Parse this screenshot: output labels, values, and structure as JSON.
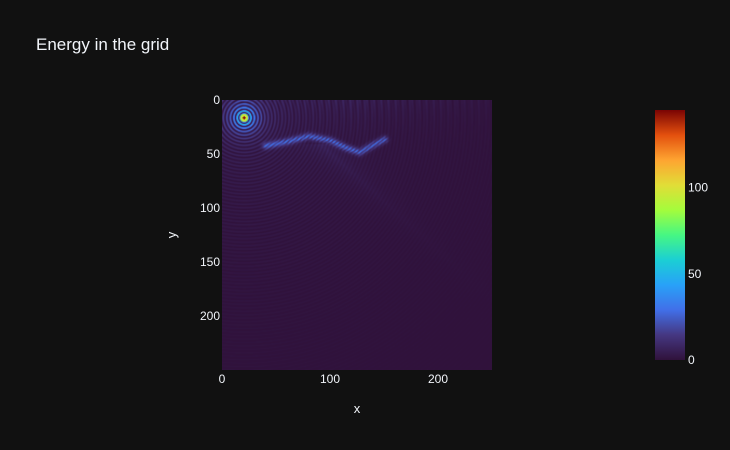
{
  "chart_data": {
    "type": "heatmap",
    "title": "Energy in the grid",
    "xlabel": "x",
    "ylabel": "y",
    "xlim": [
      0,
      250
    ],
    "ylim": [
      250,
      0
    ],
    "x_ticks": [
      0,
      100,
      200
    ],
    "y_ticks": [
      0,
      50,
      100,
      150,
      200
    ],
    "colorscale": "turbo",
    "zlim": [
      0,
      145
    ],
    "colorbar_ticks": [
      0,
      50,
      100
    ],
    "grid": false,
    "colors": {
      "background": "#111111",
      "low": "#30123b",
      "high": "#7a0403"
    },
    "features": {
      "source_center": [
        20,
        16
      ],
      "source_peak": 145,
      "ring_spacing": 3.2,
      "band_path": [
        [
          40,
          42
        ],
        [
          60,
          38
        ],
        [
          80,
          33
        ],
        [
          100,
          37
        ],
        [
          115,
          44
        ],
        [
          127,
          48
        ],
        [
          138,
          42
        ],
        [
          150,
          36
        ]
      ],
      "band_peak": 28
    }
  }
}
